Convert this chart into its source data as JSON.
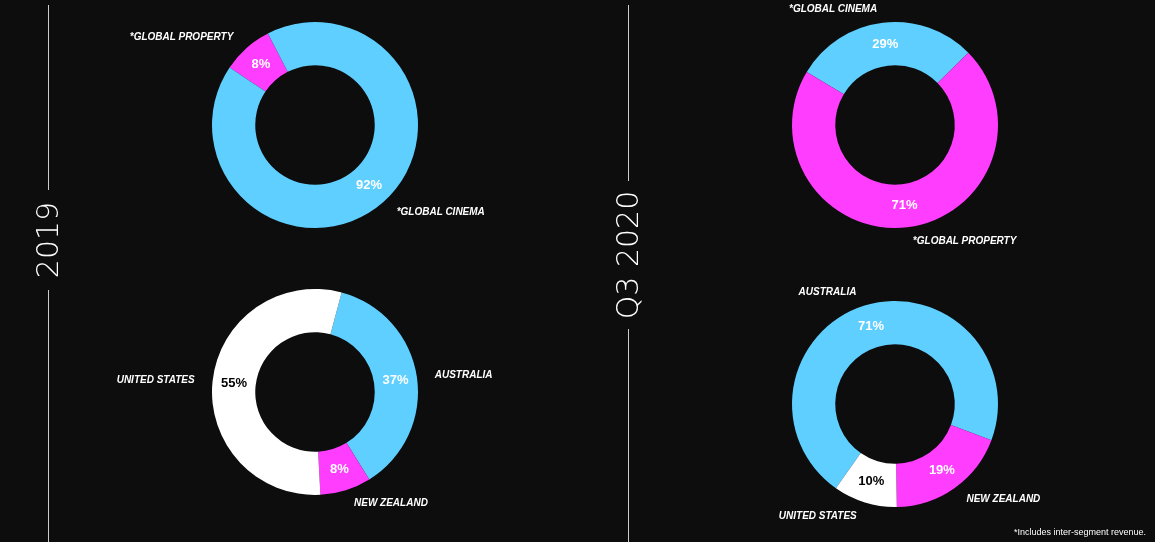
{
  "chart_data": [
    {
      "type": "donut",
      "title": "2019",
      "categories": [
        "*GLOBAL PROPERTY",
        "*GLOBAL CINEMA"
      ],
      "values": [
        8,
        92
      ],
      "colors": [
        "#ff3dff",
        "#5fcfff"
      ],
      "value_labels": [
        "8%",
        "92%"
      ],
      "legend": false
    },
    {
      "type": "donut",
      "categories": [
        "AUSTRALIA",
        "NEW ZEALAND",
        "UNITED STATES"
      ],
      "values": [
        37,
        8,
        55
      ],
      "colors": [
        "#5fcfff",
        "#ff3dff",
        "#ffffff"
      ],
      "value_labels": [
        "37%",
        "8%",
        "55%"
      ],
      "legend": false
    },
    {
      "type": "donut",
      "title": "Q3 2020",
      "categories": [
        "*GLOBAL CINEMA",
        "*GLOBAL PROPERTY"
      ],
      "values": [
        29,
        71
      ],
      "colors": [
        "#5fcfff",
        "#ff3dff"
      ],
      "value_labels": [
        "29%",
        "71%"
      ],
      "legend": false
    },
    {
      "type": "donut",
      "categories": [
        "AUSTRALIA",
        "NEW ZEALAND",
        "UNITED STATES"
      ],
      "values": [
        71,
        19,
        10
      ],
      "colors": [
        "#5fcfff",
        "#ff3dff",
        "#ffffff"
      ],
      "value_labels": [
        "71%",
        "19%",
        "10%"
      ],
      "legend": false,
      "annotations": [
        "*Includes inter-segment revenue."
      ]
    }
  ]
}
